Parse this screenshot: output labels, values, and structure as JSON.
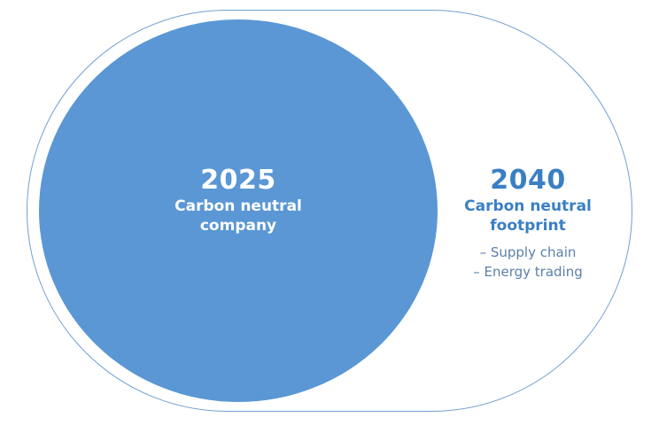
{
  "inner": {
    "year": "2025",
    "line1": "Carbon neutral",
    "line2": "company"
  },
  "outer": {
    "year": "2040",
    "line1": "Carbon neutral",
    "line2": "footprint",
    "bullets": [
      "– Supply chain",
      "– Energy trading"
    ]
  },
  "colors": {
    "inner_fill": "#5a97d4",
    "outer_border": "#6f9fd0",
    "outer_text": "#3a7fc4"
  }
}
